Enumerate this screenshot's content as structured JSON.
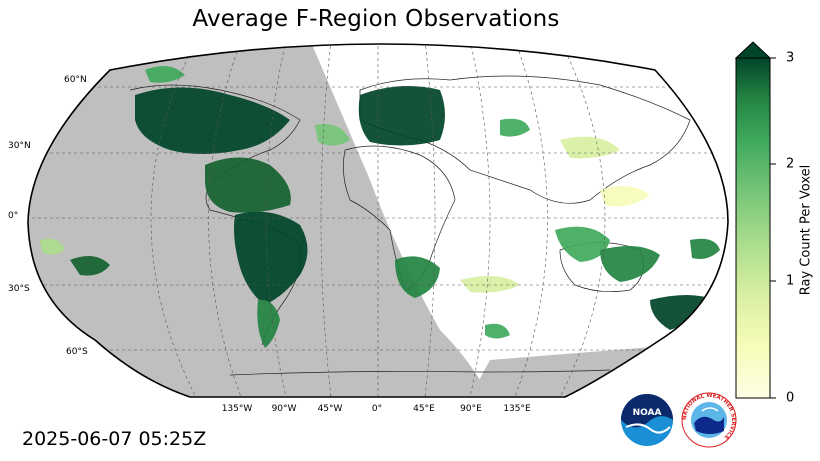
{
  "title": "Average F-Region Observations",
  "timestamp": "2025-06-07 05:25Z",
  "colorbar": {
    "label": "Ray Count Per Voxel",
    "ticks": [
      "0",
      "1",
      "2",
      "3"
    ],
    "colormap": "YlGn",
    "extend": "max",
    "range": [
      0,
      3
    ]
  },
  "map": {
    "projection": "robinson",
    "night_shade_color": "#bfbfbf",
    "grid": true,
    "lat_labels": [
      "60°N",
      "30°N",
      "0°",
      "30°S",
      "60°S"
    ],
    "lon_labels": [
      "135°W",
      "90°W",
      "45°W",
      "0°",
      "45°E",
      "90°E",
      "135°E"
    ]
  },
  "logos": {
    "noaa": {
      "text": "NOAA",
      "icon": "noaa-logo-icon"
    },
    "nws": {
      "text": "NATIONAL WEATHER SERVICE",
      "icon": "nws-logo-icon"
    }
  }
}
